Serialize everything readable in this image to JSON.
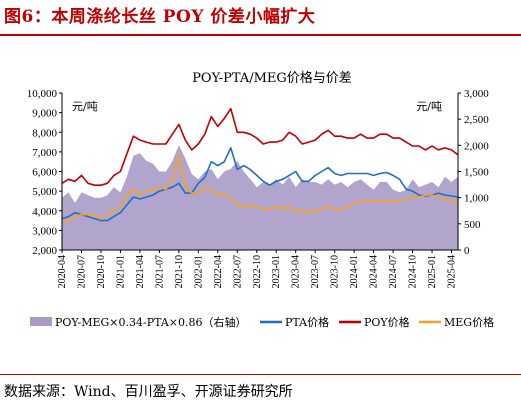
{
  "figure": {
    "title": "图6：本周涤纶长丝 POY 价差小幅扩大",
    "source": "数据来源：Wind、百川盈孚、开源证券研究所"
  },
  "chart_data": {
    "type": "line",
    "title": "POY-PTA/MEG价格与价差",
    "left_unit": "元/吨",
    "right_unit": "元/吨",
    "ylim_left": [
      2000,
      10000
    ],
    "ylim_right": [
      0,
      3000
    ],
    "yticks_left": [
      "2,000",
      "3,000",
      "4,000",
      "5,000",
      "6,000",
      "7,000",
      "8,000",
      "9,000",
      "10,000"
    ],
    "yticks_right": [
      "0",
      "500",
      "1,000",
      "1,500",
      "2,000",
      "2,500",
      "3,000"
    ],
    "x_ticks": [
      "2020-04",
      "2020-07",
      "2020-10",
      "2021-01",
      "2021-04",
      "2021-07",
      "2021-10",
      "2022-01",
      "2022-04",
      "2022-07",
      "2022-10",
      "2023-01",
      "2023-04",
      "2023-07",
      "2023-10",
      "2024-01",
      "2024-04",
      "2024-07",
      "2024-10",
      "2025-01",
      "2025-04"
    ],
    "x": [
      "2020-04",
      "2020-05",
      "2020-06",
      "2020-07",
      "2020-08",
      "2020-09",
      "2020-10",
      "2020-11",
      "2020-12",
      "2021-01",
      "2021-02",
      "2021-03",
      "2021-04",
      "2021-05",
      "2021-06",
      "2021-07",
      "2021-08",
      "2021-09",
      "2021-10",
      "2021-11",
      "2021-12",
      "2022-01",
      "2022-02",
      "2022-03",
      "2022-04",
      "2022-05",
      "2022-06",
      "2022-07",
      "2022-08",
      "2022-09",
      "2022-10",
      "2022-11",
      "2022-12",
      "2023-01",
      "2023-02",
      "2023-03",
      "2023-04",
      "2023-05",
      "2023-06",
      "2023-07",
      "2023-08",
      "2023-09",
      "2023-10",
      "2023-11",
      "2023-12",
      "2024-01",
      "2024-02",
      "2024-03",
      "2024-04",
      "2024-05",
      "2024-06",
      "2024-07",
      "2024-08",
      "2024-09",
      "2024-10",
      "2024-11",
      "2024-12",
      "2025-01",
      "2025-02",
      "2025-03",
      "2025-04",
      "2025-05"
    ],
    "series": [
      {
        "name": "POY-MEG×0.34-PTA×0.86（右轴）",
        "axis": "right",
        "type": "area",
        "color": "#a89bc8",
        "values": [
          1000,
          1100,
          900,
          1100,
          1050,
          1000,
          1000,
          1050,
          1200,
          1100,
          1400,
          1800,
          1850,
          1700,
          1650,
          1500,
          1500,
          1700,
          2000,
          1750,
          1450,
          1350,
          1500,
          1550,
          1350,
          1500,
          1550,
          1700,
          1500,
          1350,
          1200,
          1300,
          1250,
          1350,
          1250,
          1400,
          1200,
          1350,
          1300,
          1300,
          1250,
          1350,
          1250,
          1300,
          1200,
          1300,
          1350,
          1250,
          1150,
          1300,
          1300,
          1150,
          1100,
          1150,
          1350,
          1200,
          1250,
          1300,
          1200,
          1400,
          1300,
          1400
        ]
      },
      {
        "name": "PTA价格",
        "axis": "left",
        "type": "line",
        "color": "#1f6fc5",
        "values": [
          3600,
          3700,
          3900,
          3800,
          3700,
          3600,
          3500,
          3500,
          3700,
          3900,
          4300,
          4700,
          4600,
          4700,
          4800,
          5000,
          5100,
          5200,
          5400,
          4900,
          4900,
          5400,
          5700,
          6500,
          6300,
          6500,
          7200,
          6100,
          6300,
          6100,
          5800,
          5500,
          5300,
          5500,
          5600,
          5800,
          6000,
          5500,
          5500,
          5800,
          6000,
          6200,
          5900,
          5800,
          5900,
          5900,
          5900,
          5900,
          5800,
          5900,
          5950,
          5800,
          5600,
          5100,
          5000,
          4800,
          4750,
          4800,
          4900,
          4800,
          4750,
          4700
        ]
      },
      {
        "name": "POY价格",
        "axis": "left",
        "type": "line",
        "color": "#c00000",
        "values": [
          5400,
          5600,
          5500,
          5800,
          5400,
          5300,
          5300,
          5400,
          5800,
          6000,
          6900,
          7800,
          7600,
          7500,
          7400,
          7400,
          7400,
          7900,
          8400,
          7600,
          7100,
          7400,
          7900,
          8800,
          8300,
          8700,
          9200,
          8000,
          8000,
          7900,
          7700,
          7400,
          7500,
          7500,
          7600,
          8000,
          7800,
          7400,
          7500,
          7600,
          7900,
          8100,
          7800,
          7800,
          7700,
          7700,
          7900,
          7700,
          7700,
          7900,
          7900,
          7700,
          7700,
          7500,
          7300,
          7300,
          7100,
          7300,
          7100,
          7200,
          7100,
          6850
        ]
      },
      {
        "name": "MEG价格",
        "axis": "left",
        "type": "line",
        "color": "#f6a21c",
        "values": [
          3400,
          3500,
          3700,
          3800,
          3800,
          3800,
          3600,
          3800,
          4000,
          4200,
          4800,
          5100,
          4800,
          5000,
          5000,
          5200,
          5100,
          5600,
          6800,
          5200,
          4900,
          4900,
          5200,
          5100,
          4800,
          4800,
          4700,
          4300,
          4200,
          4300,
          4200,
          4100,
          4100,
          4200,
          4100,
          4200,
          4000,
          4000,
          3900,
          4000,
          4100,
          4200,
          4100,
          4100,
          4200,
          4400,
          4500,
          4500,
          4500,
          4500,
          4500,
          4500,
          4500,
          4600,
          4700,
          4700,
          4800,
          4800,
          4700,
          4600,
          4500,
          4400
        ]
      }
    ],
    "legend": "bottom",
    "grid": false
  }
}
